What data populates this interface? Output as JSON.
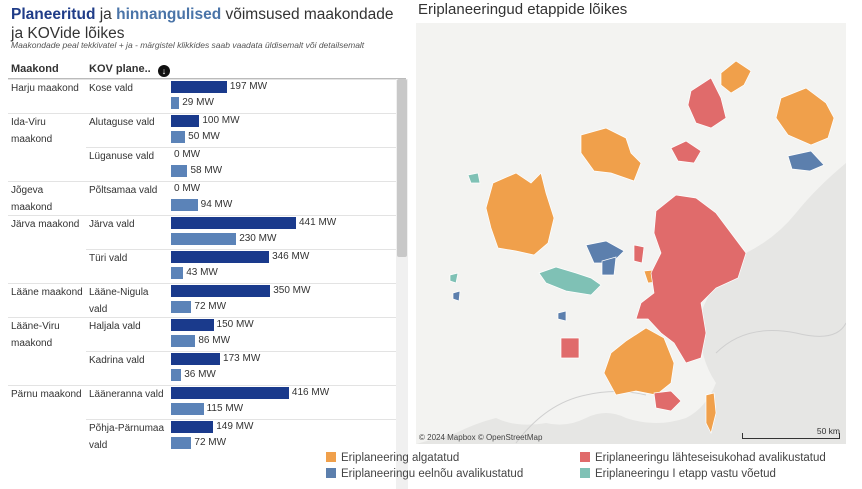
{
  "title": {
    "part1": "Planeeritud",
    "part2": " ja ",
    "part3": "hinnangulised",
    "part4": " võimsused maakondade ja KOVide lõikes"
  },
  "subtitle": "Maakondade  peal tekkivatel + ja - märgistel klikkides saab vaadata üldisemalt või detailsemalt",
  "columns": {
    "maakond": "Maakond",
    "kov": "KOV plane.."
  },
  "colors": {
    "planned": "#1a3a8c",
    "estimated": "#5b83b8",
    "algatatud": "#f0a04b",
    "lahteseisukohad": "#e06b6b",
    "eelnou": "#5c7fad",
    "etapp": "#7fc1b5"
  },
  "chart_data": {
    "type": "bar",
    "orientation": "horizontal",
    "unit": "MW",
    "series": [
      {
        "name": "Planeeritud"
      },
      {
        "name": "hinnangulised"
      }
    ],
    "groups": [
      {
        "county": "Harju maakond",
        "kov": "Kose vald",
        "planned": 197,
        "planned_label": "197 MW",
        "estimated": 29,
        "estimated_label": "29 MW"
      },
      {
        "county": "Ida-Viru maakond",
        "kov": "Alutaguse vald",
        "planned": 100,
        "planned_label": "100 MW",
        "estimated": 50,
        "estimated_label": "50 MW"
      },
      {
        "county": "",
        "kov": "Lüganuse vald",
        "planned": 0,
        "planned_label": "0 MW",
        "estimated": 58,
        "estimated_label": "58 MW"
      },
      {
        "county": "Jõgeva maakond",
        "kov": "Põltsamaa vald",
        "planned": 0,
        "planned_label": "0 MW",
        "estimated": 94,
        "estimated_label": "94 MW"
      },
      {
        "county": "Järva maakond",
        "kov": "Järva vald",
        "planned": 441,
        "planned_label": "441 MW",
        "estimated": 230,
        "estimated_label": "230 MW"
      },
      {
        "county": "",
        "kov": "Türi vald",
        "planned": 346,
        "planned_label": "346 MW",
        "estimated": 43,
        "estimated_label": "43 MW"
      },
      {
        "county": "Lääne maakond",
        "kov": "Lääne-Nigula vald",
        "planned": 350,
        "planned_label": "350 MW",
        "estimated": 72,
        "estimated_label": "72 MW"
      },
      {
        "county": "Lääne-Viru maakond",
        "kov": "Haljala vald",
        "planned": 150,
        "planned_label": "150 MW",
        "estimated": 86,
        "estimated_label": "86 MW"
      },
      {
        "county": "",
        "kov": "Kadrina vald",
        "planned": 173,
        "planned_label": "173 MW",
        "estimated": 36,
        "estimated_label": "36 MW"
      },
      {
        "county": "Pärnu maakond",
        "kov": "Lääneranna vald",
        "planned": 416,
        "planned_label": "416 MW",
        "estimated": 115,
        "estimated_label": "115 MW"
      },
      {
        "county": "",
        "kov": "Põhja-Pärnumaa vald",
        "planned": 149,
        "planned_label": "149 MW",
        "estimated": 72,
        "estimated_label": "72 MW"
      }
    ]
  },
  "map": {
    "title": "Eriplaneeringud etappide lõikes",
    "attribution": "© 2024 Mapbox  © OpenStreetMap",
    "scale": "50 km",
    "legend": [
      {
        "key": "algatatud",
        "label": "Eriplaneering algatatud"
      },
      {
        "key": "lahteseisukohad",
        "label": "Eriplaneeringu lähteseisukohad avalikustatud"
      },
      {
        "key": "eelnou",
        "label": "Eriplaneeringu eelnõu avalikustatud"
      },
      {
        "key": "etapp",
        "label": "Eriplaneeringu I etapp vastu võetud"
      }
    ]
  }
}
